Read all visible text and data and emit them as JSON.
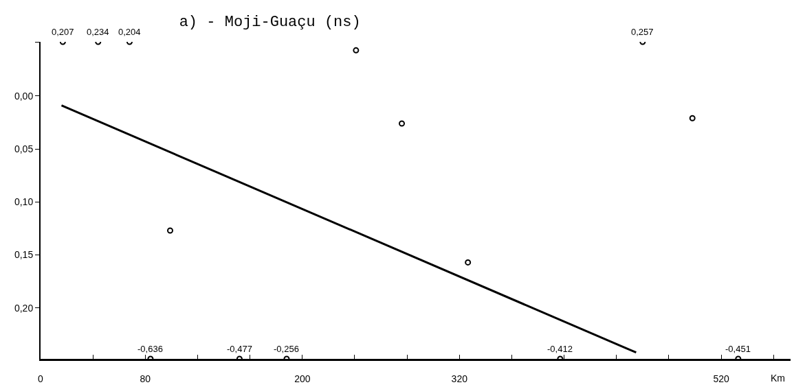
{
  "chart_data": {
    "type": "scatter",
    "title": "a) - Moji-Guaçu (ns)",
    "xlabel": "Km",
    "series": [
      {
        "type": "scatter",
        "color": "#000000",
        "marker": "circle",
        "x": [
          99,
          241,
          276,
          326.5,
          498
        ],
        "values": [
          -0.127,
          0.043,
          -0.026,
          -0.157,
          -0.021
        ]
      },
      {
        "type": "line",
        "color": "#000000",
        "marker": "none",
        "x": [
          16,
          455
        ],
        "values": [
          -0.009,
          -0.242
        ]
      }
    ],
    "annotations": [
      {
        "text": "0,207",
        "x": 17,
        "y": 0.051
      },
      {
        "text": "0,234",
        "x": 44,
        "y": 0.051
      },
      {
        "text": "0,204",
        "x": 68,
        "y": 0.051
      },
      {
        "text": "0,257",
        "x": 460,
        "y": 0.051
      },
      {
        "text": "-0,636",
        "x": 84,
        "y": -0.248
      },
      {
        "text": "-0,477",
        "x": 152,
        "y": -0.248
      },
      {
        "text": "-0,256",
        "x": 188,
        "y": -0.248
      },
      {
        "text": "-0,412",
        "x": 397,
        "y": -0.248
      },
      {
        "text": "-0,451",
        "x": 533,
        "y": -0.248
      }
    ],
    "xlim": [
      0,
      573
    ],
    "xticks": [
      0,
      {
        "value": 40,
        "label": null
      },
      80,
      {
        "value": 120,
        "label": null
      },
      {
        "value": 160,
        "label": null
      },
      200,
      {
        "value": 240,
        "label": null
      },
      {
        "value": 280,
        "label": null
      },
      320,
      {
        "value": 360,
        "label": null
      },
      {
        "value": 400,
        "label": null
      },
      {
        "value": 440,
        "label": null
      },
      {
        "value": 480,
        "label": null
      },
      520,
      {
        "value": 560,
        "label": null
      }
    ],
    "ylim": [
      -0.248,
      0.051
    ],
    "yticks": [
      {
        "value": 0.051,
        "label": null
      },
      {
        "value": 0,
        "label": "0,00"
      },
      {
        "value": -0.05,
        "label": "0,05"
      },
      {
        "value": -0.1,
        "label": "0,10"
      },
      {
        "value": -0.15,
        "label": "0,15"
      },
      {
        "value": -0.2,
        "label": "0,20"
      }
    ],
    "grid": false
  }
}
